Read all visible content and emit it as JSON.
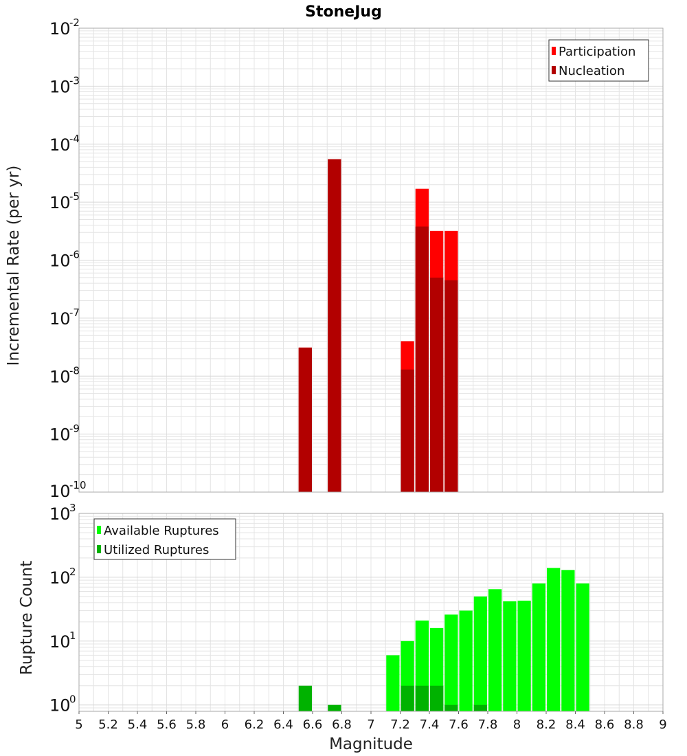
{
  "title": "StoneJug",
  "colors": {
    "participation": "#ff0000",
    "nucleation": "#b20000",
    "available": "#00ff00",
    "utilized": "#00b200",
    "grid": "#e4e4e4",
    "frame": "#aaaaaa"
  },
  "chart_data": [
    {
      "type": "bar",
      "scale": "log",
      "xlabel": "Magnitude",
      "ylabel": "Incremental Rate (per yr)",
      "xlim": [
        5,
        9
      ],
      "ylim_exp": [
        -10,
        -2
      ],
      "ytick_base": "10",
      "ytick_exponents": [
        "-10",
        "-9",
        "-8",
        "-7",
        "-6",
        "-5",
        "-4",
        "-3",
        "-2"
      ],
      "bin_width": 0.1,
      "legend_position": "top-right",
      "legend": [
        "Participation",
        "Nucleation"
      ],
      "series": [
        {
          "name": "Participation",
          "x": [
            6.55,
            6.75,
            7.25,
            7.35,
            7.45,
            7.55
          ],
          "values": [
            3.1e-08,
            5.5e-05,
            4e-08,
            1.7e-05,
            3.2e-06,
            3.2e-06
          ]
        },
        {
          "name": "Nucleation",
          "x": [
            6.55,
            6.75,
            7.25,
            7.35,
            7.45,
            7.55
          ],
          "values": [
            3.1e-08,
            5.5e-05,
            1.3e-08,
            3.8e-06,
            5e-07,
            4.5e-07
          ]
        }
      ]
    },
    {
      "type": "bar",
      "scale": "log",
      "xlabel": "Magnitude",
      "ylabel": "Rupture Count",
      "xlim": [
        5,
        9
      ],
      "ylim_exp": [
        -0.1,
        3
      ],
      "ytick_base": "10",
      "ytick_exponents": [
        "0",
        "1",
        "2",
        "3"
      ],
      "bin_width": 0.1,
      "legend_position": "top-left",
      "legend": [
        "Available Ruptures",
        "Utilized Ruptures"
      ],
      "series": [
        {
          "name": "Available Ruptures",
          "x": [
            7.15,
            7.25,
            7.35,
            7.45,
            7.55,
            7.65,
            7.75,
            7.85,
            7.95,
            8.05,
            8.15,
            8.25,
            8.35,
            8.45
          ],
          "values": [
            6,
            10,
            21,
            16,
            26,
            30,
            50,
            65,
            42,
            43,
            80,
            140,
            130,
            80
          ]
        },
        {
          "name": "Utilized Ruptures",
          "x": [
            6.55,
            6.75,
            7.25,
            7.35,
            7.45,
            7.55,
            7.75
          ],
          "values": [
            2,
            1,
            2,
            2,
            2,
            1,
            1
          ]
        }
      ],
      "xticks": [
        "5",
        "5.2",
        "5.4",
        "5.6",
        "5.8",
        "6",
        "6.2",
        "6.4",
        "6.6",
        "6.8",
        "7",
        "7.2",
        "7.4",
        "7.6",
        "7.8",
        "8",
        "8.2",
        "8.4",
        "8.6",
        "8.8",
        "9"
      ]
    }
  ]
}
